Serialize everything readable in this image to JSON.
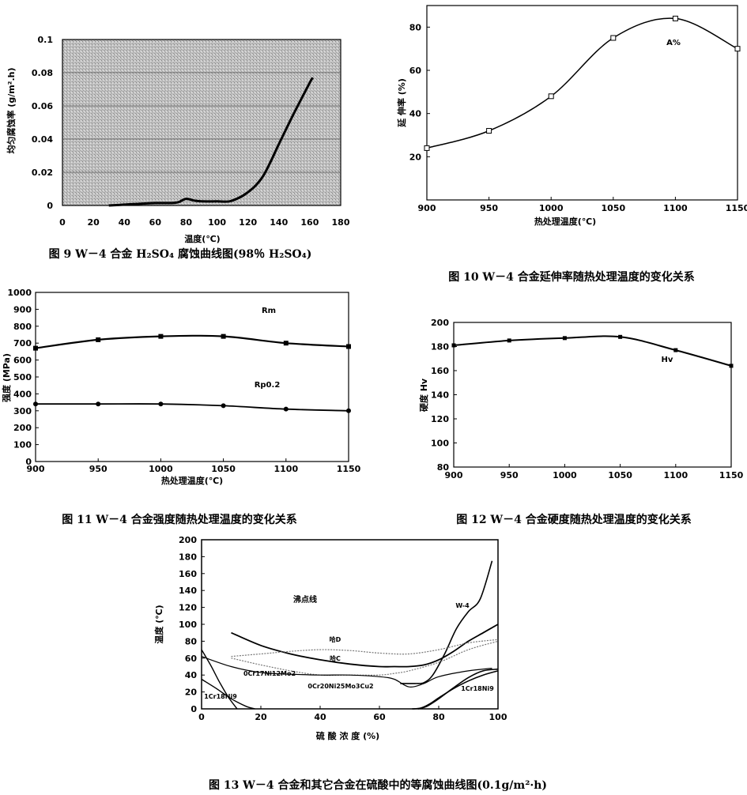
{
  "chart_data": [
    {
      "type": "line",
      "caption": "图 9 W－4 合金 H₂SO₄ 腐蚀曲线图(98％ H₂SO₄)",
      "xlabel": "温度(℃)",
      "ylabel": "均匀腐蚀率 (g/m².h)",
      "xlim": [
        0,
        180
      ],
      "ylim": [
        0,
        0.1
      ],
      "xticks": [
        "0",
        "20",
        "40",
        "60",
        "80",
        "100",
        "120",
        "140",
        "160",
        "180"
      ],
      "yticks": [
        "0",
        "0.02",
        "0.04",
        "0.06",
        "0.08",
        "0.1"
      ],
      "series": [
        {
          "x": [
            30,
            40,
            50,
            60,
            70,
            75,
            80,
            85,
            90,
            100,
            108,
            115,
            120,
            125,
            130,
            135,
            140,
            150,
            160,
            162
          ],
          "y": [
            0,
            0.0005,
            0.001,
            0.0015,
            0.0015,
            0.002,
            0.004,
            0.003,
            0.0025,
            0.0025,
            0.0025,
            0.005,
            0.008,
            0.012,
            0.018,
            0.027,
            0.037,
            0.056,
            0.074,
            0.077
          ]
        }
      ]
    },
    {
      "type": "line",
      "caption": "图 10 W－4 合金延伸率随热处理温度的变化关系",
      "xlabel": "热处理温度(℃)",
      "ylabel": "延 伸率 (%)",
      "xlim": [
        900,
        1150
      ],
      "ylim": [
        0,
        90
      ],
      "xticks": [
        "900",
        "950",
        "1000",
        "1050",
        "1100",
        "1150"
      ],
      "yticks": [
        "20",
        "40",
        "60",
        "80"
      ],
      "series": [
        {
          "name": "A%",
          "x": [
            900,
            950,
            1000,
            1050,
            1100,
            1150
          ],
          "y": [
            24,
            32,
            48,
            75,
            84,
            70
          ]
        }
      ]
    },
    {
      "type": "line",
      "caption": "图 11 W－4 合金强度随热处理温度的变化关系",
      "xlabel": "热处理温度(℃)",
      "ylabel": "强度 (MPa)",
      "xlim": [
        900,
        1150
      ],
      "ylim": [
        0,
        1000
      ],
      "xticks": [
        "900",
        "950",
        "1000",
        "1050",
        "1100",
        "1150"
      ],
      "yticks": [
        "0",
        "100",
        "200",
        "300",
        "400",
        "500",
        "600",
        "700",
        "800",
        "900",
        "1000"
      ],
      "series": [
        {
          "name": "Rm",
          "x": [
            900,
            950,
            1000,
            1050,
            1100,
            1150
          ],
          "y": [
            670,
            720,
            740,
            740,
            700,
            680
          ]
        },
        {
          "name": "Rp0.2",
          "x": [
            900,
            950,
            1000,
            1050,
            1100,
            1150
          ],
          "y": [
            340,
            340,
            340,
            330,
            310,
            300
          ]
        }
      ]
    },
    {
      "type": "line",
      "caption": "图 12 W－4 合金硬度随热处理温度的变化关系",
      "xlabel": "",
      "ylabel": "硬度 Hv",
      "xlim": [
        900,
        1150
      ],
      "ylim": [
        80,
        200
      ],
      "xticks": [
        "900",
        "950",
        "1000",
        "1050",
        "1100",
        "1150"
      ],
      "yticks": [
        "80",
        "100",
        "120",
        "140",
        "160",
        "180",
        "200"
      ],
      "series": [
        {
          "name": "Hv",
          "x": [
            900,
            950,
            1000,
            1050,
            1100,
            1150
          ],
          "y": [
            181,
            185,
            187,
            188,
            177,
            164
          ]
        }
      ]
    },
    {
      "type": "line",
      "caption": "图 13 W－4 合金和其它合金在硫酸中的等腐蚀曲线图(0.1g/m²·h)",
      "xlabel": "硫 酸 浓 度 (%)",
      "ylabel": "温度 (℃)",
      "xlim": [
        0,
        100
      ],
      "ylim": [
        0,
        200
      ],
      "xticks": [
        "0",
        "20",
        "40",
        "60",
        "80",
        "100"
      ],
      "yticks": [
        "0",
        "20",
        "40",
        "60",
        "80",
        "100",
        "120",
        "140",
        "160",
        "180",
        "200"
      ],
      "annotations": [
        "沸点线",
        "哈D",
        "哈C",
        "W-4",
        "1Cr18Ni9",
        "0Cr17Ni12Mo2",
        "0Cr20Ni25Mo3Cu2",
        "1Cr18Ni9"
      ],
      "series": [
        {
          "x": [
            10,
            20,
            30,
            40,
            50,
            60,
            65,
            70,
            75,
            80,
            85,
            90,
            95,
            100
          ],
          "y": [
            90,
            75,
            65,
            58,
            53,
            50,
            50,
            50,
            52,
            58,
            68,
            80,
            90,
            100
          ]
        },
        {
          "x": [
            67,
            72,
            75,
            78,
            82,
            86,
            90,
            94,
            98
          ],
          "y": [
            30,
            30,
            31,
            40,
            65,
            95,
            115,
            130,
            175
          ]
        },
        {
          "x": [
            10,
            20,
            30,
            40,
            50,
            60,
            70,
            80,
            90,
            100
          ],
          "y": [
            62,
            65,
            68,
            70,
            69,
            66,
            65,
            70,
            78,
            82
          ]
        },
        {
          "x": [
            10,
            20,
            30,
            40,
            50,
            60,
            65,
            70,
            80,
            90,
            100
          ],
          "y": [
            60,
            52,
            45,
            40,
            40,
            40,
            42,
            45,
            55,
            70,
            80
          ]
        },
        {
          "x": [
            0,
            10,
            20,
            30,
            40,
            50,
            60,
            65,
            70,
            75,
            80,
            90,
            98
          ],
          "y": [
            62,
            50,
            43,
            41,
            40,
            40,
            38,
            35,
            26,
            30,
            38,
            45,
            48
          ]
        },
        {
          "x": [
            0,
            3,
            6,
            9,
            12
          ],
          "y": [
            70,
            52,
            32,
            14,
            0
          ]
        },
        {
          "x": [
            0,
            5,
            10,
            15,
            18
          ],
          "y": [
            35,
            24,
            12,
            3,
            0
          ]
        },
        {
          "x": [
            73,
            76,
            80,
            85,
            90,
            95,
            100
          ],
          "y": [
            0,
            3,
            12,
            25,
            37,
            45,
            47
          ]
        },
        {
          "x": [
            71,
            74,
            77,
            80,
            85,
            90,
            95,
            100
          ],
          "y": [
            0,
            1,
            6,
            13,
            24,
            33,
            40,
            45
          ]
        }
      ]
    }
  ]
}
